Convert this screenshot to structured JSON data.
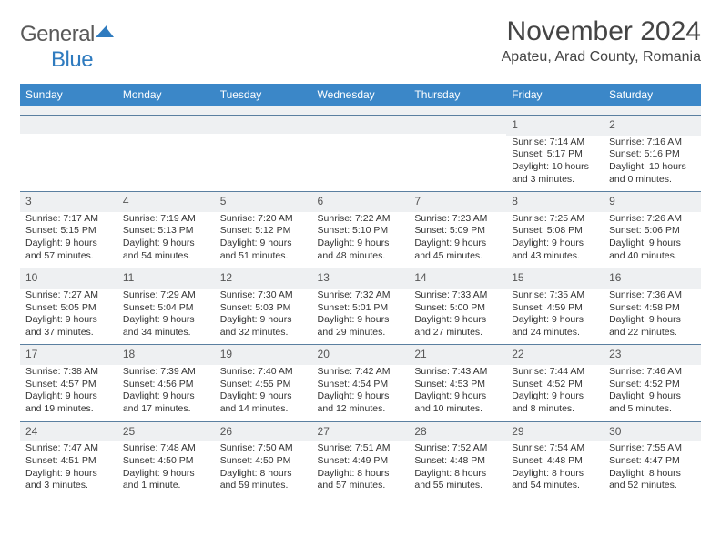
{
  "logo": {
    "text1": "General",
    "text2": "Blue"
  },
  "title": "November 2024",
  "location": "Apateu, Arad County, Romania",
  "colors": {
    "header_bg": "#3b87c8",
    "header_text": "#ffffff",
    "daynum_bg": "#eef0f2",
    "border": "#5a7fa0",
    "text": "#333333",
    "logo_gray": "#595959",
    "logo_blue": "#2f7bbf"
  },
  "typography": {
    "month_title_fontsize": 30,
    "location_fontsize": 16,
    "header_fontsize": 12,
    "cell_fontsize": 10.5
  },
  "days_of_week": [
    "Sunday",
    "Monday",
    "Tuesday",
    "Wednesday",
    "Thursday",
    "Friday",
    "Saturday"
  ],
  "weeks": [
    [
      null,
      null,
      null,
      null,
      null,
      {
        "n": "1",
        "sunrise": "7:14 AM",
        "sunset": "5:17 PM",
        "daylight": "10 hours and 3 minutes."
      },
      {
        "n": "2",
        "sunrise": "7:16 AM",
        "sunset": "5:16 PM",
        "daylight": "10 hours and 0 minutes."
      }
    ],
    [
      {
        "n": "3",
        "sunrise": "7:17 AM",
        "sunset": "5:15 PM",
        "daylight": "9 hours and 57 minutes."
      },
      {
        "n": "4",
        "sunrise": "7:19 AM",
        "sunset": "5:13 PM",
        "daylight": "9 hours and 54 minutes."
      },
      {
        "n": "5",
        "sunrise": "7:20 AM",
        "sunset": "5:12 PM",
        "daylight": "9 hours and 51 minutes."
      },
      {
        "n": "6",
        "sunrise": "7:22 AM",
        "sunset": "5:10 PM",
        "daylight": "9 hours and 48 minutes."
      },
      {
        "n": "7",
        "sunrise": "7:23 AM",
        "sunset": "5:09 PM",
        "daylight": "9 hours and 45 minutes."
      },
      {
        "n": "8",
        "sunrise": "7:25 AM",
        "sunset": "5:08 PM",
        "daylight": "9 hours and 43 minutes."
      },
      {
        "n": "9",
        "sunrise": "7:26 AM",
        "sunset": "5:06 PM",
        "daylight": "9 hours and 40 minutes."
      }
    ],
    [
      {
        "n": "10",
        "sunrise": "7:27 AM",
        "sunset": "5:05 PM",
        "daylight": "9 hours and 37 minutes."
      },
      {
        "n": "11",
        "sunrise": "7:29 AM",
        "sunset": "5:04 PM",
        "daylight": "9 hours and 34 minutes."
      },
      {
        "n": "12",
        "sunrise": "7:30 AM",
        "sunset": "5:03 PM",
        "daylight": "9 hours and 32 minutes."
      },
      {
        "n": "13",
        "sunrise": "7:32 AM",
        "sunset": "5:01 PM",
        "daylight": "9 hours and 29 minutes."
      },
      {
        "n": "14",
        "sunrise": "7:33 AM",
        "sunset": "5:00 PM",
        "daylight": "9 hours and 27 minutes."
      },
      {
        "n": "15",
        "sunrise": "7:35 AM",
        "sunset": "4:59 PM",
        "daylight": "9 hours and 24 minutes."
      },
      {
        "n": "16",
        "sunrise": "7:36 AM",
        "sunset": "4:58 PM",
        "daylight": "9 hours and 22 minutes."
      }
    ],
    [
      {
        "n": "17",
        "sunrise": "7:38 AM",
        "sunset": "4:57 PM",
        "daylight": "9 hours and 19 minutes."
      },
      {
        "n": "18",
        "sunrise": "7:39 AM",
        "sunset": "4:56 PM",
        "daylight": "9 hours and 17 minutes."
      },
      {
        "n": "19",
        "sunrise": "7:40 AM",
        "sunset": "4:55 PM",
        "daylight": "9 hours and 14 minutes."
      },
      {
        "n": "20",
        "sunrise": "7:42 AM",
        "sunset": "4:54 PM",
        "daylight": "9 hours and 12 minutes."
      },
      {
        "n": "21",
        "sunrise": "7:43 AM",
        "sunset": "4:53 PM",
        "daylight": "9 hours and 10 minutes."
      },
      {
        "n": "22",
        "sunrise": "7:44 AM",
        "sunset": "4:52 PM",
        "daylight": "9 hours and 8 minutes."
      },
      {
        "n": "23",
        "sunrise": "7:46 AM",
        "sunset": "4:52 PM",
        "daylight": "9 hours and 5 minutes."
      }
    ],
    [
      {
        "n": "24",
        "sunrise": "7:47 AM",
        "sunset": "4:51 PM",
        "daylight": "9 hours and 3 minutes."
      },
      {
        "n": "25",
        "sunrise": "7:48 AM",
        "sunset": "4:50 PM",
        "daylight": "9 hours and 1 minute."
      },
      {
        "n": "26",
        "sunrise": "7:50 AM",
        "sunset": "4:50 PM",
        "daylight": "8 hours and 59 minutes."
      },
      {
        "n": "27",
        "sunrise": "7:51 AM",
        "sunset": "4:49 PM",
        "daylight": "8 hours and 57 minutes."
      },
      {
        "n": "28",
        "sunrise": "7:52 AM",
        "sunset": "4:48 PM",
        "daylight": "8 hours and 55 minutes."
      },
      {
        "n": "29",
        "sunrise": "7:54 AM",
        "sunset": "4:48 PM",
        "daylight": "8 hours and 54 minutes."
      },
      {
        "n": "30",
        "sunrise": "7:55 AM",
        "sunset": "4:47 PM",
        "daylight": "8 hours and 52 minutes."
      }
    ]
  ],
  "labels": {
    "sunrise": "Sunrise:",
    "sunset": "Sunset:",
    "daylight": "Daylight:"
  }
}
